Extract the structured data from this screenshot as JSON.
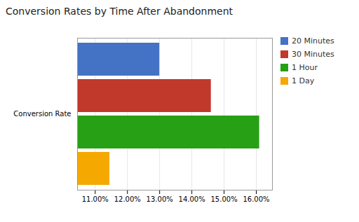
{
  "chart_data": {
    "type": "bar",
    "title": "Conversion Rates by Time After Abandonment",
    "orientation": "horizontal",
    "categories": [
      "Conversion Rate"
    ],
    "series": [
      {
        "name": "20 Minutes",
        "color": "#4472C4",
        "values": [
          0.13
        ]
      },
      {
        "name": "30 Minutes",
        "color": "#C0392B",
        "values": [
          0.146
        ]
      },
      {
        "name": "1 Hour",
        "color": "#27A015",
        "values": [
          0.161
        ]
      },
      {
        "name": "1 Day",
        "color": "#F5A800",
        "values": [
          0.1145
        ]
      }
    ],
    "xlim": [
      0.1045,
      0.165
    ],
    "xticks": [
      {
        "value": 0.11,
        "label": "11.00%"
      },
      {
        "value": 0.12,
        "label": "12.00%"
      },
      {
        "value": 0.13,
        "label": "13.00%"
      },
      {
        "value": 0.14,
        "label": "14.00%"
      },
      {
        "value": 0.15,
        "label": "15.00%"
      },
      {
        "value": 0.16,
        "label": "16.00%"
      }
    ],
    "grid": true,
    "legend": "right"
  }
}
